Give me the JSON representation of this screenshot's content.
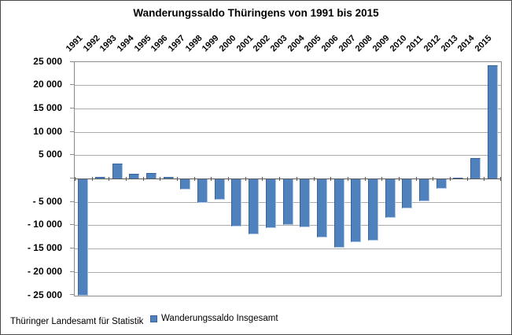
{
  "chart_data": {
    "type": "bar",
    "title": "Wanderungssaldo Thüringens von 1991 bis 2015",
    "categories": [
      "1991",
      "1992",
      "1993",
      "1994",
      "1995",
      "1996",
      "1997",
      "1998",
      "1999",
      "2000",
      "2001",
      "2002",
      "2003",
      "2004",
      "2005",
      "2006",
      "2007",
      "2008",
      "2009",
      "2010",
      "2011",
      "2012",
      "2013",
      "2014",
      "2015"
    ],
    "series": [
      {
        "name": "Wanderungssaldo Insgesamt",
        "values": [
          -24900,
          500,
          3300,
          1100,
          1200,
          500,
          -2200,
          -5000,
          -4300,
          -10100,
          -11800,
          -10500,
          -9700,
          -10300,
          -12500,
          -14600,
          -13500,
          -13100,
          -8300,
          -6300,
          -4700,
          -2000,
          300,
          4500,
          24400
        ]
      }
    ],
    "ylim": [
      -25000,
      25000
    ],
    "y_tick_interval": 5000,
    "y_ticks": [
      {
        "value": 25000,
        "label": "25 000"
      },
      {
        "value": 20000,
        "label": "20 000"
      },
      {
        "value": 15000,
        "label": "15 000"
      },
      {
        "value": 10000,
        "label": "10 000"
      },
      {
        "value": 5000,
        "label": "5 000"
      },
      {
        "value": -5000,
        "label": "- 5 000"
      },
      {
        "value": -10000,
        "label": "- 10 000"
      },
      {
        "value": -15000,
        "label": "- 15 000"
      },
      {
        "value": -20000,
        "label": "- 20 000"
      },
      {
        "value": -25000,
        "label": "- 25 000"
      }
    ],
    "grid": "horizontal",
    "x_labels_position": "top-rotated-45",
    "legend_position": "bottom",
    "legend_label": "Wanderungssaldo Insgesamt",
    "colors": {
      "bar": "#4F81BD",
      "bar_edge_dark": "#3a659c",
      "bar_edge_light": "#b5cae6",
      "gridline": "#ababab",
      "zero_line": "#595959",
      "plot_border": "#8c8c8c"
    }
  },
  "footer": {
    "source": "Thüringer Landesamt für Statistik"
  }
}
